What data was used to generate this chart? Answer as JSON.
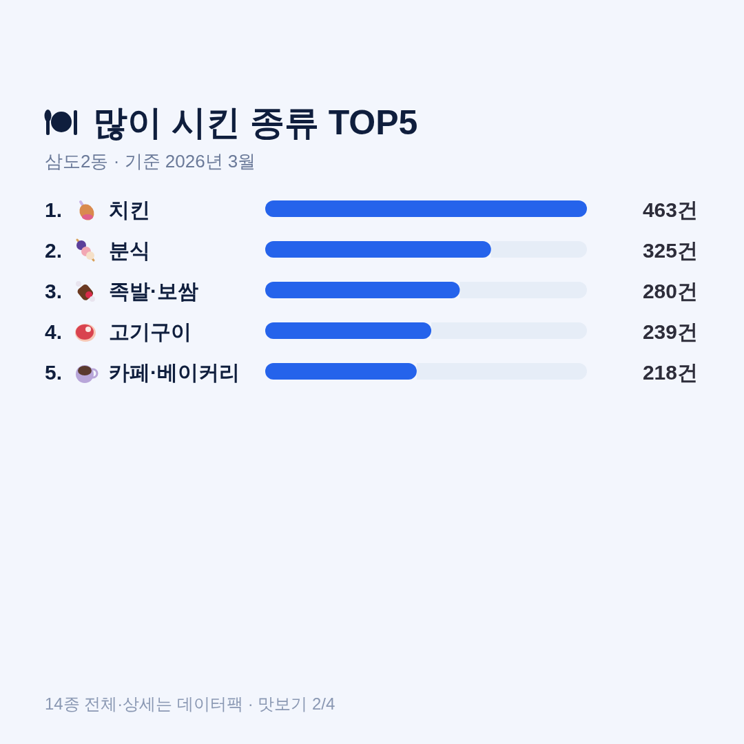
{
  "chart_data": {
    "type": "bar",
    "orientation": "horizontal",
    "title": "많이 시킨 종류 TOP5",
    "subtitle": "삼도2동 · 기준 2026년 3월",
    "categories": [
      "1. 치킨",
      "2. 분식",
      "3. 족발·보쌈",
      "4. 고기구이",
      "5. 카페·베이커리"
    ],
    "values": [
      463,
      325,
      280,
      239,
      218
    ],
    "value_labels": [
      "463건",
      "325건",
      "280건",
      "239건",
      "218건"
    ],
    "color": "#2563eb",
    "annotations": [
      "14종 전체·상세는 데이터팩 · 맛보기 2/4"
    ]
  }
}
